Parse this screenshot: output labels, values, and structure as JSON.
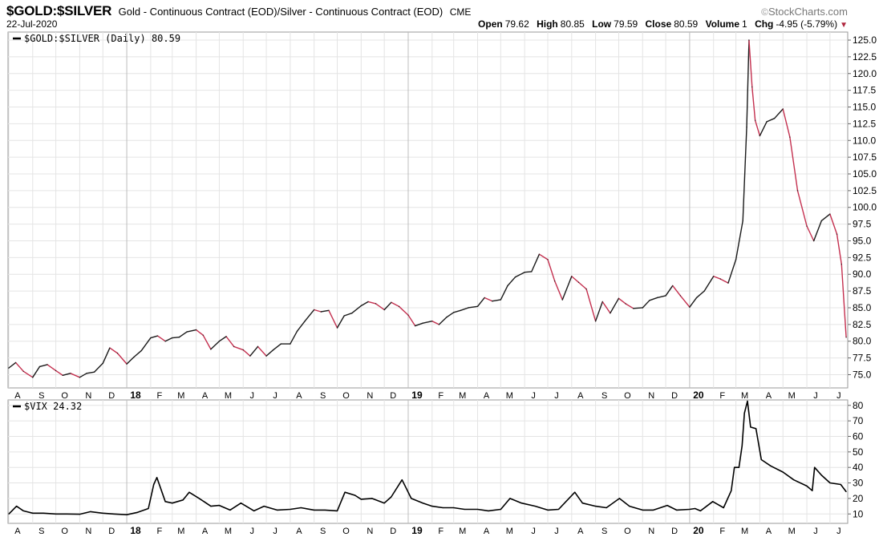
{
  "header": {
    "symbol": "$GOLD:$SILVER",
    "description": "Gold - Continuous Contract (EOD)/Silver - Continuous Contract (EOD)",
    "exchange": "CME",
    "brand": "StockCharts.com",
    "date": "22-Jul-2020",
    "quote": {
      "open_label": "Open",
      "open": "79.62",
      "high_label": "High",
      "high": "80.85",
      "low_label": "Low",
      "low": "79.59",
      "close_label": "Close",
      "close": "80.59",
      "volume_label": "Volume",
      "volume": "1",
      "chg_label": "Chg",
      "chg": "-4.95 (-5.79%)"
    }
  },
  "colors": {
    "up": "#1a1a1a",
    "down": "#c4304f",
    "vix_line": "#000000",
    "grid": "#e4e4e4",
    "major_grid": "#bdbdbd"
  },
  "chart_data": [
    {
      "type": "line",
      "name": "$GOLD:$SILVER (Daily) 80.59",
      "legend": "$GOLD:$SILVER (Daily) 80.59",
      "y_axis_side": "right",
      "ylim": [
        73.5,
        126.2
      ],
      "yticks": [
        75.0,
        77.5,
        80.0,
        82.5,
        85.0,
        87.5,
        90.0,
        92.5,
        95.0,
        97.5,
        100.0,
        102.5,
        105.0,
        107.5,
        110.0,
        112.5,
        115.0,
        117.5,
        120.0,
        122.5,
        125.0
      ],
      "ytick_labels": [
        "75.0",
        "77.5",
        "80.0",
        "82.5",
        "85.0",
        "87.5",
        "90.0",
        "92.5",
        "95.0",
        "97.5",
        "100.0",
        "102.5",
        "105.0",
        "107.5",
        "110.0",
        "112.5",
        "115.0",
        "117.5",
        "120.0",
        "122.5",
        "125.0"
      ],
      "xlim": [
        "2017-07-31",
        "2020-07-24"
      ],
      "x_tick_labels": [
        "A",
        "S",
        "O",
        "N",
        "D",
        "18",
        "F",
        "M",
        "A",
        "M",
        "J",
        "J",
        "A",
        "S",
        "O",
        "N",
        "D",
        "19",
        "F",
        "M",
        "A",
        "M",
        "J",
        "J",
        "A",
        "S",
        "O",
        "N",
        "D",
        "20",
        "F",
        "M",
        "A",
        "M",
        "J",
        "J"
      ],
      "x": [
        "2017-08-01",
        "2017-08-10",
        "2017-08-20",
        "2017-09-01",
        "2017-09-10",
        "2017-09-20",
        "2017-10-01",
        "2017-10-10",
        "2017-10-20",
        "2017-11-01",
        "2017-11-10",
        "2017-11-20",
        "2017-12-01",
        "2017-12-10",
        "2017-12-20",
        "2018-01-01",
        "2018-01-10",
        "2018-01-20",
        "2018-02-01",
        "2018-02-10",
        "2018-02-20",
        "2018-03-01",
        "2018-03-10",
        "2018-03-20",
        "2018-04-01",
        "2018-04-10",
        "2018-04-20",
        "2018-05-01",
        "2018-05-10",
        "2018-05-20",
        "2018-06-01",
        "2018-06-10",
        "2018-06-20",
        "2018-07-01",
        "2018-07-10",
        "2018-07-20",
        "2018-08-01",
        "2018-08-10",
        "2018-08-20",
        "2018-09-01",
        "2018-09-10",
        "2018-09-20",
        "2018-10-01",
        "2018-10-10",
        "2018-10-20",
        "2018-11-01",
        "2018-11-10",
        "2018-11-20",
        "2018-12-01",
        "2018-12-10",
        "2018-12-20",
        "2019-01-01",
        "2019-01-10",
        "2019-01-20",
        "2019-02-01",
        "2019-02-10",
        "2019-02-20",
        "2019-03-01",
        "2019-03-10",
        "2019-03-20",
        "2019-04-01",
        "2019-04-10",
        "2019-04-20",
        "2019-05-01",
        "2019-05-10",
        "2019-05-20",
        "2019-06-01",
        "2019-06-10",
        "2019-06-20",
        "2019-07-01",
        "2019-07-10",
        "2019-07-20",
        "2019-08-01",
        "2019-08-10",
        "2019-08-20",
        "2019-09-01",
        "2019-09-10",
        "2019-09-20",
        "2019-10-01",
        "2019-10-10",
        "2019-10-20",
        "2019-11-01",
        "2019-11-10",
        "2019-11-20",
        "2019-12-01",
        "2019-12-10",
        "2019-12-20",
        "2020-01-01",
        "2020-01-10",
        "2020-01-20",
        "2020-02-01",
        "2020-02-10",
        "2020-02-20",
        "2020-03-01",
        "2020-03-10",
        "2020-03-15",
        "2020-03-18",
        "2020-03-22",
        "2020-03-26",
        "2020-04-01",
        "2020-04-10",
        "2020-04-20",
        "2020-05-01",
        "2020-05-10",
        "2020-05-20",
        "2020-06-01",
        "2020-06-10",
        "2020-06-20",
        "2020-07-01",
        "2020-07-10",
        "2020-07-16",
        "2020-07-22"
      ],
      "y": [
        76.0,
        76.8,
        75.5,
        74.6,
        76.2,
        76.5,
        75.6,
        74.9,
        75.2,
        74.6,
        75.2,
        75.4,
        76.7,
        79.0,
        78.2,
        76.6,
        77.6,
        78.6,
        80.5,
        80.8,
        80.0,
        80.5,
        80.6,
        81.4,
        81.7,
        80.9,
        78.8,
        80.0,
        80.7,
        79.2,
        78.7,
        77.8,
        79.2,
        77.8,
        78.7,
        79.6,
        79.6,
        81.5,
        83.0,
        84.7,
        84.4,
        84.6,
        82.0,
        83.8,
        84.2,
        85.3,
        85.9,
        85.6,
        84.7,
        85.8,
        85.2,
        83.9,
        82.3,
        82.7,
        83.0,
        82.5,
        83.6,
        84.3,
        84.6,
        85.0,
        85.2,
        86.5,
        86.0,
        86.2,
        88.3,
        89.6,
        90.3,
        90.4,
        93.0,
        92.2,
        89.0,
        86.2,
        89.7,
        88.8,
        87.8,
        83.0,
        85.9,
        84.2,
        86.4,
        85.6,
        84.9,
        85.0,
        86.1,
        86.5,
        86.8,
        88.3,
        86.8,
        85.1,
        86.5,
        87.5,
        89.7,
        89.3,
        88.7,
        92.2,
        98.0,
        112.0,
        125.0,
        118.0,
        113.0,
        110.7,
        112.8,
        113.3,
        114.7,
        110.5,
        102.5,
        97.2,
        95.0,
        98.0,
        99.0,
        96.0,
        91.5,
        80.59
      ]
    },
    {
      "type": "line",
      "name": "$VIX 24.32",
      "legend": "$VIX 24.32",
      "y_axis_side": "right",
      "ylim": [
        6.0,
        83.5
      ],
      "yticks": [
        10,
        20,
        30,
        40,
        50,
        60,
        70,
        80
      ],
      "ytick_labels": [
        "10",
        "20",
        "30",
        "40",
        "50",
        "60",
        "70",
        "80"
      ],
      "xlim": [
        "2017-07-31",
        "2020-07-24"
      ],
      "x_tick_labels": [
        "A",
        "S",
        "O",
        "N",
        "D",
        "18",
        "F",
        "M",
        "A",
        "M",
        "J",
        "J",
        "A",
        "S",
        "O",
        "N",
        "D",
        "19",
        "F",
        "M",
        "A",
        "M",
        "J",
        "J",
        "A",
        "S",
        "O",
        "N",
        "D",
        "20",
        "F",
        "M",
        "A",
        "M",
        "J",
        "J"
      ],
      "x": [
        "2017-08-01",
        "2017-08-11",
        "2017-08-20",
        "2017-09-01",
        "2017-09-15",
        "2017-10-01",
        "2017-10-15",
        "2017-11-01",
        "2017-11-15",
        "2017-12-01",
        "2017-12-15",
        "2018-01-01",
        "2018-01-15",
        "2018-01-29",
        "2018-02-05",
        "2018-02-09",
        "2018-02-20",
        "2018-03-01",
        "2018-03-15",
        "2018-03-23",
        "2018-04-05",
        "2018-04-20",
        "2018-05-01",
        "2018-05-15",
        "2018-05-29",
        "2018-06-15",
        "2018-06-28",
        "2018-07-15",
        "2018-08-01",
        "2018-08-15",
        "2018-09-01",
        "2018-09-15",
        "2018-10-01",
        "2018-10-11",
        "2018-10-24",
        "2018-11-01",
        "2018-11-15",
        "2018-12-01",
        "2018-12-10",
        "2018-12-24",
        "2019-01-05",
        "2019-01-20",
        "2019-02-01",
        "2019-02-15",
        "2019-03-01",
        "2019-03-15",
        "2019-04-01",
        "2019-04-15",
        "2019-05-01",
        "2019-05-13",
        "2019-05-28",
        "2019-06-15",
        "2019-07-01",
        "2019-07-15",
        "2019-08-05",
        "2019-08-15",
        "2019-09-01",
        "2019-09-15",
        "2019-10-02",
        "2019-10-15",
        "2019-11-01",
        "2019-11-15",
        "2019-12-03",
        "2019-12-15",
        "2020-01-01",
        "2020-01-08",
        "2020-01-15",
        "2020-01-31",
        "2020-02-14",
        "2020-02-24",
        "2020-02-28",
        "2020-03-05",
        "2020-03-09",
        "2020-03-12",
        "2020-03-16",
        "2020-03-20",
        "2020-03-27",
        "2020-04-03",
        "2020-04-15",
        "2020-05-01",
        "2020-05-15",
        "2020-06-01",
        "2020-06-08",
        "2020-06-11",
        "2020-06-20",
        "2020-07-01",
        "2020-07-15",
        "2020-07-22"
      ],
      "y": [
        10.0,
        15.0,
        12.0,
        10.5,
        10.5,
        10.0,
        10.0,
        9.8,
        11.5,
        10.5,
        10.0,
        9.5,
        11.0,
        13.5,
        29.0,
        33.5,
        18.0,
        17.0,
        19.0,
        24.0,
        20.0,
        15.0,
        15.5,
        12.5,
        17.0,
        12.0,
        15.0,
        12.5,
        13.0,
        14.0,
        12.5,
        12.5,
        12.0,
        24.0,
        22.0,
        19.5,
        20.0,
        17.0,
        21.0,
        32.0,
        20.0,
        17.0,
        15.0,
        14.0,
        14.0,
        13.0,
        13.0,
        12.0,
        13.0,
        20.0,
        17.0,
        15.0,
        12.5,
        13.0,
        24.0,
        17.0,
        15.0,
        14.0,
        20.0,
        15.0,
        12.5,
        12.5,
        15.5,
        12.5,
        13.0,
        13.5,
        12.0,
        18.0,
        14.0,
        25.0,
        40.0,
        40.0,
        54.0,
        75.0,
        82.7,
        66.0,
        65.0,
        45.0,
        41.0,
        37.0,
        32.0,
        28.0,
        25.0,
        40.0,
        35.0,
        30.0,
        29.0,
        24.32
      ]
    }
  ]
}
